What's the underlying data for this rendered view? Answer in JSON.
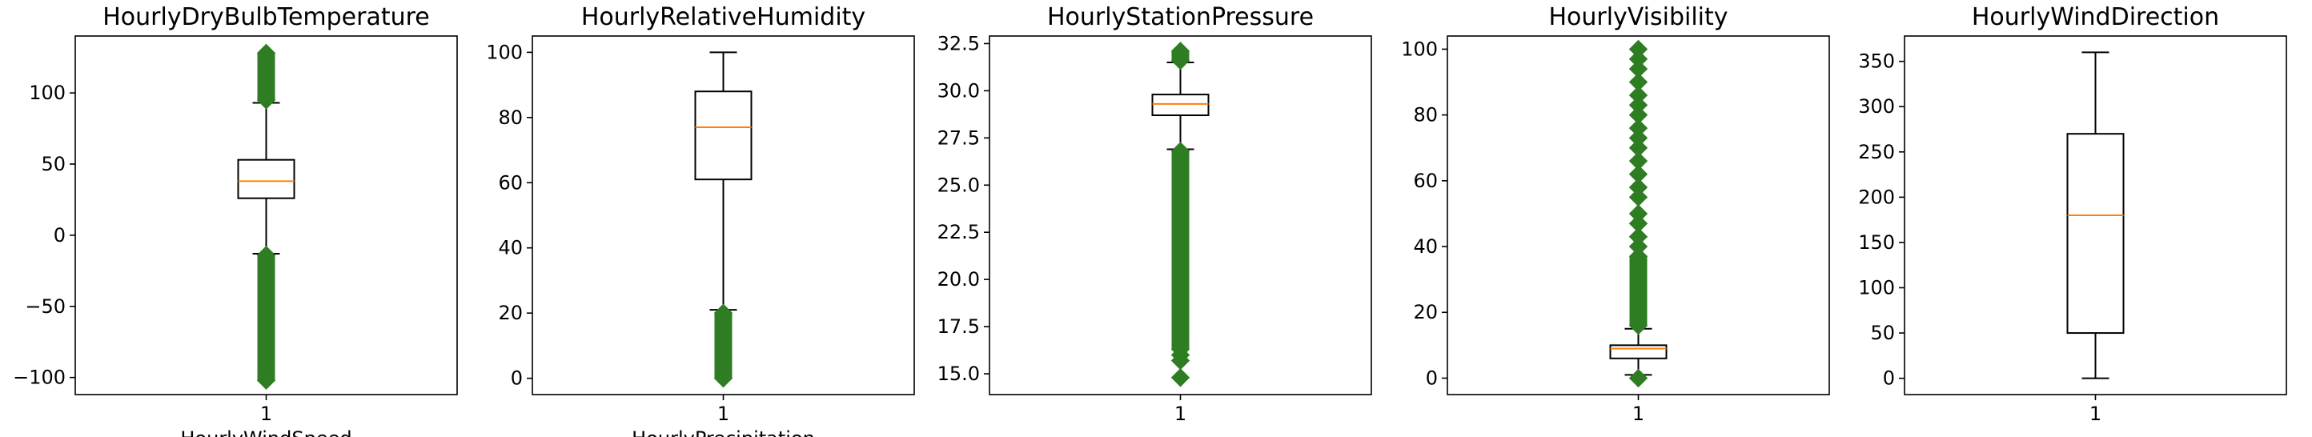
{
  "chart_data": [
    {
      "type": "boxplot",
      "title": "HourlyDryBulbTemperature",
      "xticks": [
        "1"
      ],
      "ylim": [
        -112,
        140
      ],
      "yticks": [
        100,
        50,
        0,
        -50,
        -100
      ],
      "ytick_labels": [
        "100",
        "50",
        "0",
        "−50",
        "−100"
      ],
      "stats": {
        "whisker_low": -13,
        "q1": 26,
        "median": 38,
        "q3": 53,
        "whisker_high": 93
      },
      "outliers": {
        "ranges": [
          [
            -102,
            -14
          ],
          [
            95,
            128
          ]
        ]
      }
    },
    {
      "type": "boxplot",
      "title": "HourlyRelativeHumidity",
      "xticks": [
        "1"
      ],
      "ylim": [
        -5,
        105
      ],
      "yticks": [
        100,
        80,
        60,
        40,
        20,
        0
      ],
      "ytick_labels": [
        "100",
        "80",
        "60",
        "40",
        "20",
        "0"
      ],
      "stats": {
        "whisker_low": 21,
        "q1": 61,
        "median": 77,
        "q3": 88,
        "whisker_high": 100
      },
      "outliers": {
        "ranges": [
          [
            0,
            20
          ]
        ]
      }
    },
    {
      "type": "boxplot",
      "title": "HourlyStationPressure",
      "xticks": [
        "1"
      ],
      "ylim": [
        13.9,
        32.9
      ],
      "yticks": [
        32.5,
        30.0,
        27.5,
        25.0,
        22.5,
        20.0,
        17.5,
        15.0
      ],
      "ytick_labels": [
        "32.5",
        "30.0",
        "27.5",
        "25.0",
        "22.5",
        "20.0",
        "17.5",
        "15.0"
      ],
      "stats": {
        "whisker_low": 26.9,
        "q1": 28.7,
        "median": 29.3,
        "q3": 29.8,
        "whisker_high": 31.5
      },
      "outliers": {
        "ranges": [
          [
            16.3,
            26.8
          ],
          [
            31.6,
            32.1
          ]
        ],
        "points": [
          15.7,
          16.0,
          14.8
        ]
      }
    },
    {
      "type": "boxplot",
      "title": "HourlyVisibility",
      "xticks": [
        "1"
      ],
      "ylim": [
        -5,
        104
      ],
      "yticks": [
        100,
        80,
        60,
        40,
        20,
        0
      ],
      "ytick_labels": [
        "100",
        "80",
        "60",
        "40",
        "20",
        "0"
      ],
      "stats": {
        "whisker_low": 1,
        "q1": 6,
        "median": 9,
        "q3": 10,
        "whisker_high": 15
      },
      "outliers": {
        "ranges": [
          [
            16,
            37
          ]
        ],
        "points": [
          0,
          40,
          43,
          47,
          50,
          55,
          58,
          62,
          66,
          70,
          73,
          76,
          80,
          83,
          86,
          90,
          94,
          97,
          100
        ]
      }
    },
    {
      "type": "boxplot",
      "title": "HourlyWindDirection",
      "xticks": [
        "1"
      ],
      "ylim": [
        -18,
        378
      ],
      "yticks": [
        350,
        300,
        250,
        200,
        150,
        100,
        50,
        0
      ],
      "ytick_labels": [
        "350",
        "300",
        "250",
        "200",
        "150",
        "100",
        "50",
        "0"
      ],
      "stats": {
        "whisker_low": 0,
        "q1": 50,
        "median": 180,
        "q3": 270,
        "whisker_high": 360
      },
      "outliers": {
        "ranges": []
      }
    }
  ],
  "colors": {
    "box_edge": "#000000",
    "median": "#ff7f0e",
    "outlier": "#2e7d22"
  },
  "clipped_titles_next_row": [
    "HourlyWindSpeed",
    "HourlyPrecipitation"
  ]
}
